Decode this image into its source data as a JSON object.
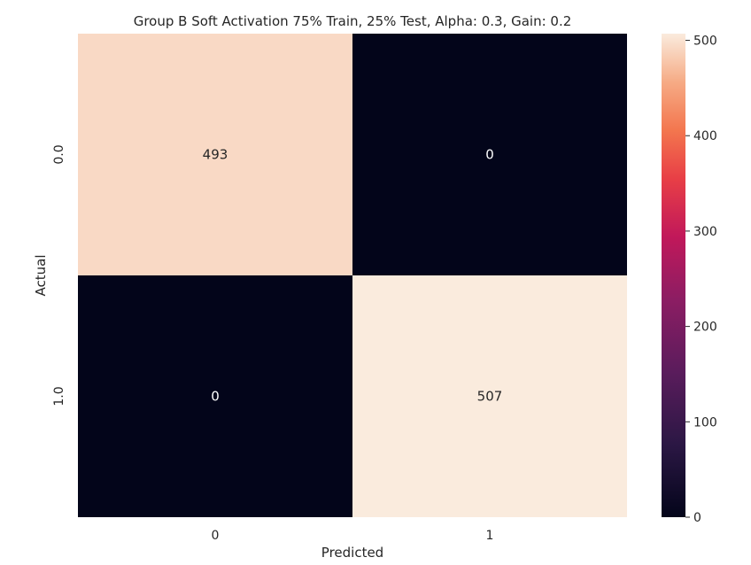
{
  "chart_data": {
    "type": "heatmap",
    "title": "Group B Soft Activation 75% Train, 25% Test, Alpha: 0.3, Gain: 0.2",
    "xlabel": "Predicted",
    "ylabel": "Actual",
    "x_categories": [
      "0",
      "1"
    ],
    "y_categories": [
      "0.0",
      "1.0"
    ],
    "values": [
      [
        493,
        0
      ],
      [
        0,
        507
      ]
    ],
    "colorbar": {
      "range": [
        0,
        507
      ],
      "ticks": [
        0,
        100,
        200,
        300,
        400,
        500
      ],
      "colormap": "rocket"
    },
    "grid": false
  }
}
